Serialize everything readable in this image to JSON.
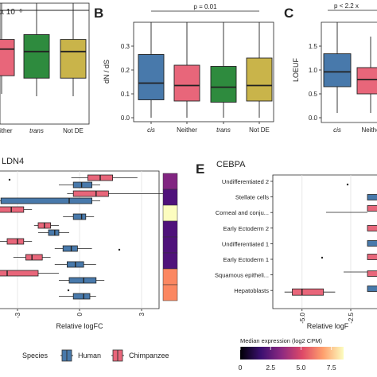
{
  "colors": {
    "cis": "#4879ab",
    "neither": "#e8667a",
    "trans": "#2e8b3e",
    "not_de": "#c9b44a",
    "human": "#4879ab",
    "chimpanzee": "#e8667a"
  },
  "chart_data": [
    {
      "panel": "A",
      "type": "box",
      "title_annotation": "x 10⁻⁶",
      "categories": [
        "Neither",
        "trans",
        "Not DE"
      ],
      "visible_tick_labels": [
        "ither",
        "trans",
        "Not DE"
      ],
      "boxes": [
        {
          "category": "Neither",
          "q1": 0.4,
          "median": 0.62,
          "q3": 0.7,
          "color_key": "neither"
        },
        {
          "category": "trans",
          "q1": 0.38,
          "median": 0.6,
          "q3": 0.74,
          "color_key": "trans"
        },
        {
          "category": "Not DE",
          "q1": 0.38,
          "median": 0.6,
          "q3": 0.7,
          "color_key": "not_de"
        }
      ]
    },
    {
      "panel": "B",
      "type": "box",
      "ylabel": "dN / dS",
      "pvalue": "p = 0.01",
      "categories": [
        "cis",
        "Neither",
        "trans",
        "Not DE"
      ],
      "ylim": [
        0,
        0.4
      ],
      "yticks": [
        "0.0",
        "0.1",
        "0.2",
        "0.3"
      ],
      "boxes": [
        {
          "category": "cis",
          "whisker_low": 0,
          "q1": 0.075,
          "median": 0.145,
          "q3": 0.265,
          "whisker_high": 0.4,
          "color_key": "cis"
        },
        {
          "category": "Neither",
          "whisker_low": 0,
          "q1": 0.07,
          "median": 0.135,
          "q3": 0.22,
          "whisker_high": 0.4,
          "color_key": "neither"
        },
        {
          "category": "trans",
          "whisker_low": 0,
          "q1": 0.065,
          "median": 0.128,
          "q3": 0.215,
          "whisker_high": 0.4,
          "color_key": "trans"
        },
        {
          "category": "Not DE",
          "whisker_low": 0,
          "q1": 0.07,
          "median": 0.135,
          "q3": 0.25,
          "whisker_high": 0.4,
          "color_key": "not_de"
        }
      ]
    },
    {
      "panel": "C",
      "type": "box",
      "ylabel": "LOEUF",
      "pvalue": "p < 2.2 x",
      "categories": [
        "cis",
        "Neither"
      ],
      "visible_tick_labels": [
        "cis",
        "Neithe"
      ],
      "ylim": [
        0,
        2
      ],
      "yticks": [
        "0.0",
        "0.5",
        "1.0",
        "1.5"
      ],
      "boxes": [
        {
          "category": "cis",
          "whisker_low": 0.1,
          "q1": 0.65,
          "median": 0.96,
          "q3": 1.34,
          "whisker_high": 2.0,
          "color_key": "cis"
        },
        {
          "category": "Neither",
          "whisker_low": 0.1,
          "q1": 0.5,
          "median": 0.8,
          "q3": 1.05,
          "whisker_high": 1.7,
          "color_key": "neither"
        }
      ]
    },
    {
      "panel": "D",
      "type": "box",
      "title": "LDN4",
      "xlabel": "Relative logFC",
      "xlim": [
        -6,
        6
      ],
      "xticks": [
        -3,
        0,
        3
      ],
      "tick_labels": [
        "-3",
        "0",
        "3"
      ],
      "rows": [
        {
          "human": {
            "q1": -0.3,
            "median": 0.1,
            "q3": 0.6,
            "lo": -1.0,
            "hi": 1.0
          },
          "chimp": {
            "q1": 0.4,
            "median": 1.0,
            "q3": 1.6,
            "lo": -0.4,
            "hi": 2.8
          },
          "heat": 0.35
        },
        {
          "human": {
            "q1": -3.8,
            "median": -0.5,
            "q3": 0.6,
            "lo": -4.5,
            "hi": 1.0
          },
          "chimp": {
            "q1": -0.3,
            "median": 0.8,
            "q3": 1.4,
            "lo": -0.6,
            "hi": 4.2
          },
          "heat": 0.3
        },
        {
          "human": {
            "q1": -0.3,
            "median": 0.1,
            "q3": 0.3,
            "lo": -0.8,
            "hi": 0.7
          },
          "chimp": {
            "q1": -4.3,
            "median": -3.3,
            "q3": -2.7,
            "lo": -5.2,
            "hi": -2.3
          },
          "heat": 0.95
        },
        {
          "human": {
            "q1": -1.5,
            "median": -1.2,
            "q3": -1.0,
            "lo": -2.0,
            "hi": -0.5
          },
          "chimp": {
            "q1": -2.0,
            "median": -1.7,
            "q3": -1.4,
            "lo": -2.2,
            "hi": -1.0
          },
          "heat": 0.3
        },
        {
          "human": {
            "q1": -0.8,
            "median": -0.4,
            "q3": -0.1,
            "lo": -1.2,
            "hi": 0.6
          },
          "chimp": {
            "q1": -3.5,
            "median": -3.0,
            "q3": -2.7,
            "lo": -4.2,
            "hi": -2.3
          },
          "heat": 0.3
        },
        {
          "human": {
            "q1": -0.6,
            "median": -0.2,
            "q3": 0.2,
            "lo": -1.2,
            "hi": 0.8
          },
          "chimp": {
            "q1": -2.6,
            "median": -2.3,
            "q3": -1.8,
            "lo": -3.2,
            "hi": -1.4
          },
          "heat": 0.28
        },
        {
          "human": {
            "q1": -0.5,
            "median": 0.2,
            "q3": 0.8,
            "lo": -1.0,
            "hi": 1.2
          },
          "chimp": {
            "q1": -4.8,
            "median": -3.5,
            "q3": -2.0,
            "lo": -6.0,
            "hi": -1.0
          },
          "heat": 0.8
        },
        {
          "human": {
            "q1": -0.3,
            "median": 0.2,
            "q3": 0.5,
            "lo": -1.0,
            "hi": 0.8
          },
          "chimp": {
            "q1": -6.0,
            "median": -5.5,
            "q3": -5.2,
            "lo": -6.0,
            "hi": -5.0
          },
          "heat": 0.75
        }
      ]
    },
    {
      "panel": "E",
      "type": "box",
      "title": "CEBPA",
      "xlabel": "Relative logFC",
      "xlim": [
        -6.5,
        0
      ],
      "xticks": [
        -5.0,
        -2.5
      ],
      "tick_labels": [
        "-5.0",
        "-2.5"
      ],
      "rows": [
        {
          "label": "Undifferentiated 2"
        },
        {
          "label": "Stellate cells"
        },
        {
          "label": "Corneal and conju..."
        },
        {
          "label": "Early Ectoderm 2"
        },
        {
          "label": "Undifferentiated 1"
        },
        {
          "label": "Early Ectoderm 1"
        },
        {
          "label": "Squamous epitheli..."
        },
        {
          "label": "Hepatoblasts",
          "chimp": {
            "q1": -5.5,
            "median": -5.0,
            "q3": -3.9,
            "lo": -5.9,
            "hi": -3.3
          }
        }
      ]
    },
    {
      "panel": "legend",
      "type": "legend",
      "species_title": "Species",
      "species": [
        "Human",
        "Chimpanzee"
      ],
      "colorbar_title": "Median expression (log2 CPM)",
      "colorbar_ticks": [
        "0",
        "2.5",
        "5.0",
        "7.5"
      ],
      "colorbar_range": [
        0,
        8.5
      ]
    }
  ],
  "labels": {
    "a_annot": "x 10⁻⁶",
    "a_ticks": [
      "ither",
      "trans",
      "Not DE"
    ],
    "b_letter": "B",
    "b_ylabel": "dN / dS",
    "b_p": "p = 0.01",
    "b_yticks": [
      "0.0",
      "0.1",
      "0.2",
      "0.3"
    ],
    "b_ticks": [
      "cis",
      "Neither",
      "trans",
      "Not DE"
    ],
    "c_letter": "C",
    "c_ylabel": "LOEUF",
    "c_p": "p < 2.2 x",
    "c_yticks": [
      "0.0",
      "0.5",
      "1.0",
      "1.5"
    ],
    "c_ticks": [
      "cis",
      "Neithe"
    ],
    "d_title": "LDN4",
    "d_xlabel": "Relative logFC",
    "d_ticks": [
      "-3",
      "0",
      "3"
    ],
    "e_letter": "E",
    "e_title": "CEBPA",
    "e_xlabel": "Relative logF",
    "e_ticks": [
      "-5.0",
      "-2.5"
    ],
    "e_rows": [
      "Undifferentiated 2",
      "Stellate cells",
      "Corneal and conju...",
      "Early Ectoderm 2",
      "Undifferentiated 1",
      "Early Ectoderm 1",
      "Squamous epitheli...",
      "Hepatoblasts"
    ],
    "species_title": "Species",
    "species_human": "Human",
    "species_chimp": "Chimpanzee",
    "cbar_title": "Median expression (log2 CPM)",
    "cbar_ticks": [
      "0",
      "2.5",
      "5.0",
      "7.5"
    ]
  }
}
